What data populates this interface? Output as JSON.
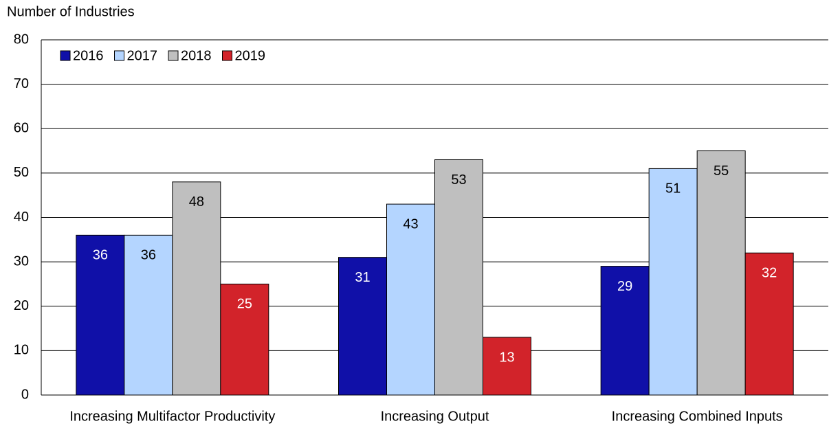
{
  "chart_data": {
    "type": "bar",
    "y_axis_label": "Number of Industries",
    "categories": [
      "Increasing Multifactor Productivity",
      "Increasing Output",
      "Increasing Combined Inputs"
    ],
    "series": [
      {
        "name": "2016",
        "color": "#1010a8",
        "values": [
          36,
          31,
          29
        ]
      },
      {
        "name": "2017",
        "color": "#b4d5ff",
        "values": [
          36,
          43,
          51
        ]
      },
      {
        "name": "2018",
        "color": "#bfbfbf",
        "values": [
          48,
          53,
          55
        ]
      },
      {
        "name": "2019",
        "color": "#d2232a",
        "values": [
          25,
          13,
          32
        ]
      }
    ],
    "ylim": [
      0,
      80
    ],
    "yticks": [
      0,
      10,
      20,
      30,
      40,
      50,
      60,
      70,
      80
    ],
    "grid": true,
    "legend": "top-left"
  }
}
